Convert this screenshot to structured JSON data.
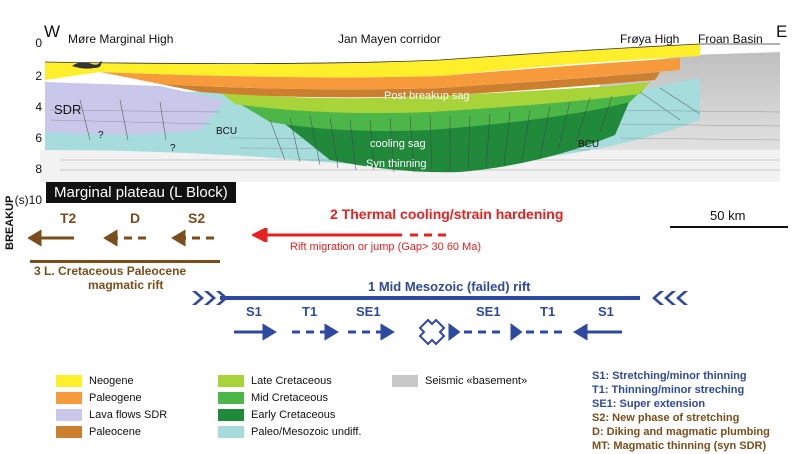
{
  "header": {
    "west": "W",
    "east": "E",
    "more_marginal_high": "Møre Marginal High",
    "jan_mayen_corridor": "Jan Mayen corridor",
    "froya_high": "Frøya High",
    "froan_basin": "Froan Basin"
  },
  "depth_axis": {
    "ticks": [
      "0",
      "2",
      "4",
      "6",
      "8",
      "(s)10"
    ]
  },
  "section_labels": {
    "sdr": "SDR",
    "q1": "?",
    "q2": "?",
    "bcu_left": "BCU",
    "bcu_right": "BCU",
    "post_breakup_sag": "Post breakup sag",
    "cooling_sag": "cooling sag",
    "syn_thinning": "Syn thinning"
  },
  "marginal_plateau": "Marginal plateau (L Block)",
  "scale_bar": "50 km",
  "breakup": "BREAKUP",
  "brown_arrows": [
    "T2",
    "D",
    "S2"
  ],
  "magmatic_rift": {
    "line1": "3 L. Cretaceous Paleocene",
    "line2": "magmatic rift"
  },
  "thermal": {
    "title": "2 Thermal cooling/strain hardening",
    "rift_migration": "Rift migration or jump (Gap> 30 60 Ma)"
  },
  "mesozoic_rift": {
    "title": "1 Mid Mesozoic (failed) rift",
    "left_arrows": [
      "S1",
      "T1",
      "SE1"
    ],
    "right_arrows": [
      "SE1",
      "T1",
      "S1"
    ]
  },
  "legend": {
    "col1": [
      {
        "label": "Neogene",
        "color": "#ffef2a"
      },
      {
        "label": "Paleogene",
        "color": "#f79a3c"
      },
      {
        "label": "Lava flows SDR",
        "color": "#c9c8ea"
      },
      {
        "label": "Paleocene",
        "color": "#cc7f2e"
      }
    ],
    "col2": [
      {
        "label": "Late Cretaceous",
        "color": "#a8d43a"
      },
      {
        "label": "Mid Cretaceous",
        "color": "#4cb748"
      },
      {
        "label": "Early Cretaceous",
        "color": "#1e8a3a"
      },
      {
        "label": "Paleo/Mesozoic undiff.",
        "color": "#a6dcdc"
      }
    ],
    "col3": [
      {
        "label": "Seismic «basement»",
        "color": "#c8c8c8"
      }
    ]
  },
  "phases": [
    {
      "text": "S1: Stretching/minor thinning",
      "tone": "blue"
    },
    {
      "text": "T1: Thinning/minor streching",
      "tone": "blue"
    },
    {
      "text": "SE1: Super extension",
      "tone": "blue"
    },
    {
      "text": "S2: New phase of stretching",
      "tone": "brown"
    },
    {
      "text": "D: Diking and magmatic plumbing",
      "tone": "brown"
    },
    {
      "text": "MT: Magmatic thinning (syn SDR)",
      "tone": "brown"
    }
  ],
  "colors": {
    "blue": "#2e4aa0",
    "brown": "#7a4e1c",
    "red": "#e8201f"
  }
}
